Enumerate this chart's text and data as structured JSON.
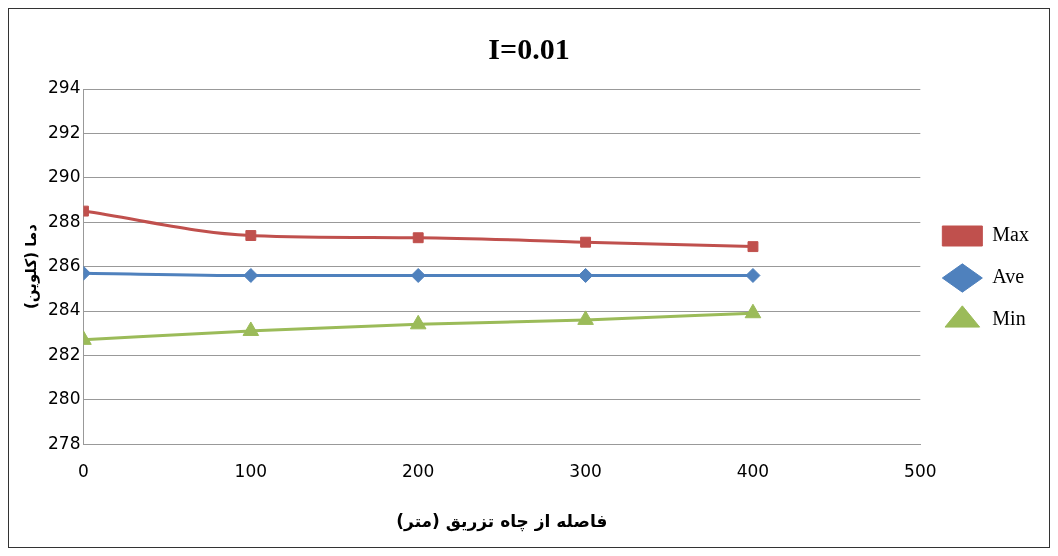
{
  "chart_data": {
    "type": "line",
    "title": "I=0.01",
    "xlabel": "فاصله از چاه تزریق (متر)",
    "ylabel": "دما (کلوین)",
    "x": [
      0,
      100,
      200,
      300,
      400
    ],
    "xlim": [
      0,
      500
    ],
    "xticks": [
      0,
      100,
      200,
      300,
      400,
      500
    ],
    "ylim": [
      278,
      294
    ],
    "yticks": [
      278,
      280,
      282,
      284,
      286,
      288,
      290,
      292,
      294
    ],
    "grid": "y",
    "legend": "right",
    "line_style": "solid",
    "series": [
      {
        "name": "Max",
        "color": "#c0504d",
        "marker": "square",
        "values": [
          288.5,
          287.4,
          287.3,
          287.1,
          286.9
        ]
      },
      {
        "name": "Ave",
        "color": "#4f81bd",
        "marker": "diamond",
        "values": [
          285.7,
          285.6,
          285.6,
          285.6,
          285.6
        ]
      },
      {
        "name": "Min",
        "color": "#9bbb59",
        "marker": "triangle",
        "values": [
          282.7,
          283.1,
          283.4,
          283.6,
          283.9
        ]
      }
    ]
  }
}
